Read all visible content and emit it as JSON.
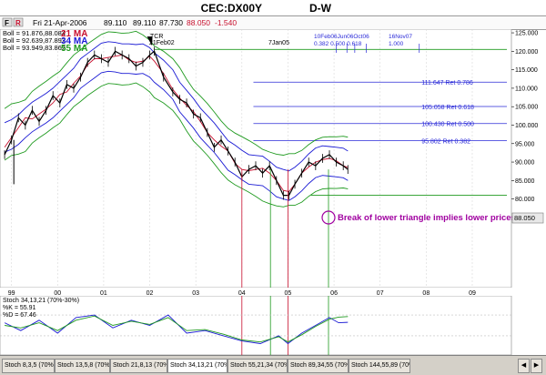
{
  "title": "CEC:DX00Y",
  "interval": "D-W",
  "toolbar": {
    "icons": [
      "F",
      "R"
    ],
    "date": "Fri 21-Apr-2006",
    "open": "89.110",
    "high": "89.110",
    "low": "87.730",
    "close": "88.050",
    "change": "-1.540"
  },
  "legend": [
    {
      "label": "Boll = 91.876,88.084",
      "ma": "21 MA",
      "color": "#c8102e"
    },
    {
      "label": "Boll = 92.639,87.892",
      "ma": "34 MA",
      "color": "#1a1ad4"
    },
    {
      "label": "Boll = 93.949,83.862",
      "ma": "55 MA",
      "color": "#1f9a1f"
    }
  ],
  "annotations": {
    "tcr": "TCR",
    "tcr_date": "21Feb02",
    "jan05": "7Jan05",
    "fib_dates": "10Feb06Jun06Oct06",
    "fib_ratios": "0.382 0.500 0.618",
    "nov07": "16Nov07",
    "nov07_ratio": "1.000",
    "break_text": "Break of lower triangle implies lower prices",
    "last_price": "88.050"
  },
  "colors": {
    "price": "#000000",
    "ma21": "#c8102e",
    "ma34": "#1a1ad4",
    "ma55": "#1f9a1f",
    "fib": "#2a2ad8",
    "annotation": "#a000a0",
    "stoch_k": "#1a1ad4",
    "stoch_d": "#1f9a1f"
  },
  "stoch": {
    "title": "Stoch 34,13,21 (70%-30%)",
    "k_label": "%K = 55.91",
    "d_label": "%D = 67.46"
  },
  "chart_data": {
    "type": "line",
    "title": "CEC:DX00Y",
    "y_axis": {
      "ylim": [
        56,
        126
      ],
      "ticks": [
        "125.000",
        "120.000",
        "115.000",
        "110.000",
        "105.000",
        "100.000",
        "95.000",
        "90.000",
        "85.000",
        "80.000"
      ]
    },
    "x_axis": {
      "xlim": [
        1998.75,
        2009.85
      ],
      "ticks": [
        "99",
        "00",
        "01",
        "02",
        "03",
        "04",
        "05",
        "06",
        "07",
        "08",
        "09"
      ]
    },
    "fib_levels": [
      {
        "value": 111.647,
        "label": "111.647 Ret 0.786"
      },
      {
        "value": 105.058,
        "label": "105.058 Ret 0.618"
      },
      {
        "value": 100.43,
        "label": "100.430 Ret 0.500"
      },
      {
        "value": 95.802,
        "label": "95.802 Ret 0.382"
      }
    ],
    "horizontal_levels": [
      120.5,
      81.0
    ],
    "price_series": {
      "name": "CEC:DX00Y",
      "x": [
        1998.85,
        1999.0,
        1999.15,
        1999.3,
        1999.45,
        1999.6,
        1999.75,
        1999.9,
        2000.05,
        2000.2,
        2000.35,
        2000.5,
        2000.65,
        2000.8,
        2000.95,
        2001.1,
        2001.25,
        2001.4,
        2001.55,
        2001.7,
        2001.85,
        2002.0,
        2002.1,
        2002.3,
        2002.5,
        2002.65,
        2002.8,
        2002.95,
        2003.1,
        2003.25,
        2003.4,
        2003.55,
        2003.7,
        2003.85,
        2004.0,
        2004.15,
        2004.3,
        2004.45,
        2004.6,
        2004.75,
        2004.9,
        2005.02,
        2005.15,
        2005.3,
        2005.45,
        2005.6,
        2005.75,
        2005.9,
        2006.05,
        2006.2,
        2006.3
      ],
      "y": [
        92,
        96,
        102,
        100,
        104,
        101,
        104,
        108,
        106,
        111,
        110,
        113,
        117,
        119,
        118,
        117,
        120,
        119,
        118,
        116,
        117,
        119,
        120,
        113,
        109,
        107,
        106,
        103,
        102,
        98,
        94,
        96,
        93,
        90,
        86,
        88,
        89,
        87,
        89,
        85,
        81,
        81,
        84,
        87,
        90,
        89,
        91,
        92,
        90,
        89,
        88
      ]
    },
    "stoch_series": [
      {
        "name": "%K",
        "x": [
          1998.85,
          1999.2,
          1999.6,
          2000.0,
          2000.4,
          2000.8,
          2001.2,
          2001.6,
          2002.0,
          2002.4,
          2002.8,
          2003.2,
          2003.6,
          2004.0,
          2004.4,
          2004.8,
          2005.0,
          2005.3,
          2005.6,
          2005.9,
          2006.1,
          2006.3
        ],
        "y": [
          55,
          40,
          60,
          35,
          65,
          70,
          45,
          60,
          50,
          70,
          35,
          40,
          30,
          20,
          15,
          30,
          15,
          35,
          50,
          65,
          55,
          56
        ]
      },
      {
        "name": "%D",
        "x": [
          1998.85,
          1999.2,
          1999.6,
          2000.0,
          2000.4,
          2000.8,
          2001.2,
          2001.6,
          2002.0,
          2002.4,
          2002.8,
          2003.2,
          2003.6,
          2004.0,
          2004.4,
          2004.8,
          2005.0,
          2005.3,
          2005.6,
          2005.9,
          2006.1,
          2006.3
        ],
        "y": [
          50,
          45,
          55,
          40,
          60,
          68,
          50,
          58,
          52,
          65,
          40,
          42,
          33,
          22,
          18,
          28,
          18,
          32,
          48,
          62,
          66,
          67
        ]
      }
    ],
    "stoch_ylim": [
      0,
      100
    ]
  },
  "tabs": [
    "Stoch 8,3,5 (70%-30%)",
    "Stoch 13,5,8 (70%-30%)",
    "Stoch 21,8,13 (70%-30%)",
    "Stoch 34,13,21 (70%-30%)",
    "Stoch 55,21,34 (70%-30%)",
    "Stoch 89,34,55 (70%-30%)",
    "Stoch 144,55,89 (70%-30%)"
  ]
}
